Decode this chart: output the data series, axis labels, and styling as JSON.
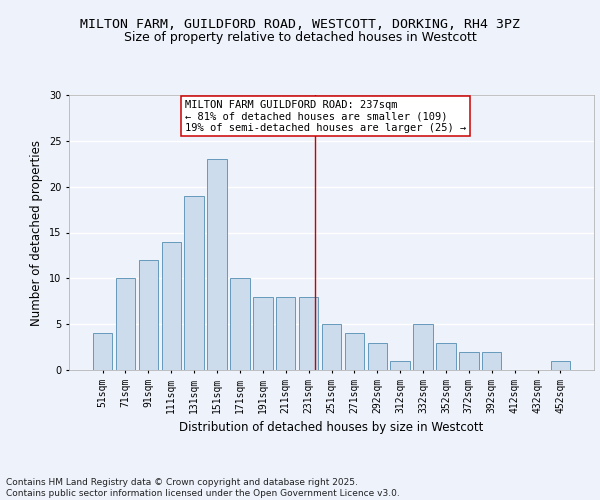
{
  "title1": "MILTON FARM, GUILDFORD ROAD, WESTCOTT, DORKING, RH4 3PZ",
  "title2": "Size of property relative to detached houses in Westcott",
  "xlabel": "Distribution of detached houses by size in Westcott",
  "ylabel": "Number of detached properties",
  "categories": [
    "51sqm",
    "71sqm",
    "91sqm",
    "111sqm",
    "131sqm",
    "151sqm",
    "171sqm",
    "191sqm",
    "211sqm",
    "231sqm",
    "251sqm",
    "271sqm",
    "292sqm",
    "312sqm",
    "332sqm",
    "352sqm",
    "372sqm",
    "392sqm",
    "412sqm",
    "432sqm",
    "452sqm"
  ],
  "values": [
    4,
    10,
    12,
    14,
    19,
    23,
    10,
    8,
    8,
    8,
    5,
    4,
    3,
    1,
    5,
    3,
    2,
    2,
    0,
    0,
    1
  ],
  "bar_color": "#ccdcec",
  "bar_edge_color": "#6699bb",
  "background_color": "#eef2fb",
  "grid_color": "#ffffff",
  "vline_color": "#cc0000",
  "annotation_text": "MILTON FARM GUILDFORD ROAD: 237sqm\n← 81% of detached houses are smaller (109)\n19% of semi-detached houses are larger (25) →",
  "annotation_box_color": "#ffffff",
  "annotation_box_edge": "#cc0000",
  "ylim": [
    0,
    30
  ],
  "yticks": [
    0,
    5,
    10,
    15,
    20,
    25,
    30
  ],
  "footnote": "Contains HM Land Registry data © Crown copyright and database right 2025.\nContains public sector information licensed under the Open Government Licence v3.0.",
  "title_fontsize": 9.5,
  "subtitle_fontsize": 9.0,
  "axis_label_fontsize": 8.5,
  "tick_fontsize": 7.0,
  "annotation_fontsize": 7.5,
  "footnote_fontsize": 6.5
}
